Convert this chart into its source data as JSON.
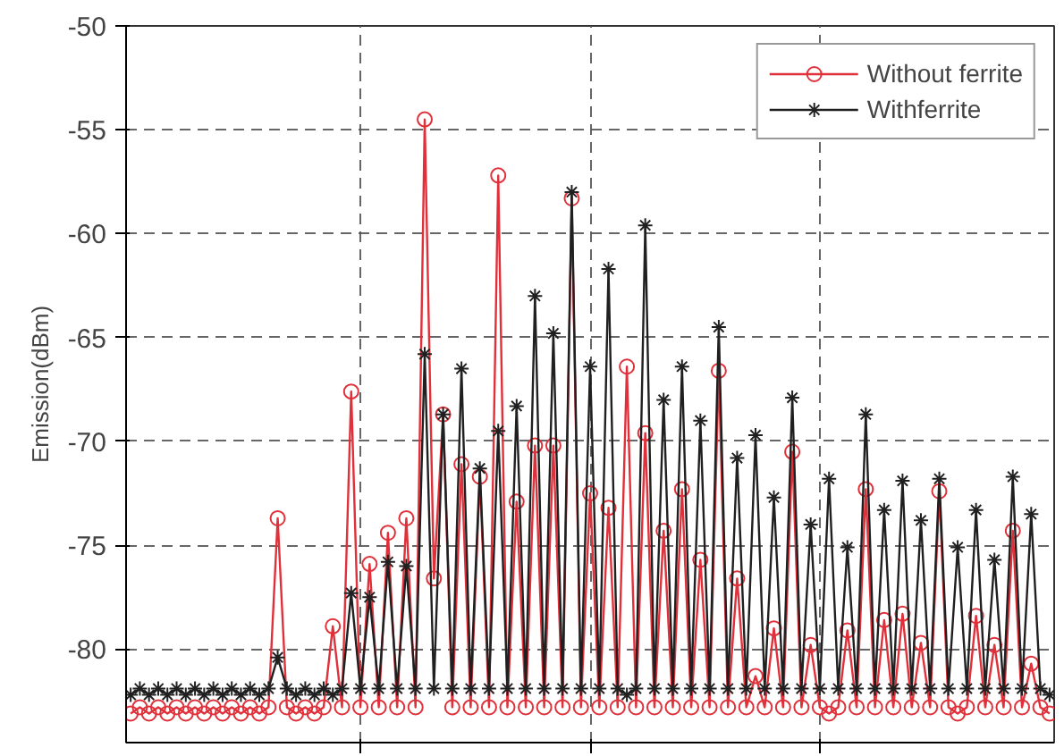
{
  "chart_data": {
    "type": "line",
    "ylabel": "Emission(dBm)",
    "categories": [
      null,
      null,
      null,
      null,
      null,
      null,
      null,
      null,
      null,
      null,
      null,
      null,
      null,
      null,
      null,
      null,
      null,
      null,
      null,
      null,
      null,
      null,
      null,
      null,
      null,
      null,
      null,
      null,
      null,
      null,
      null,
      null,
      null,
      null,
      null,
      null,
      null,
      null,
      null,
      null,
      null,
      null,
      null,
      null,
      null,
      null,
      null,
      null,
      null,
      null,
      null,
      null,
      null,
      null,
      null,
      null,
      null,
      null,
      null,
      null,
      null,
      null,
      null,
      null,
      null,
      null,
      null,
      null,
      null,
      null,
      null,
      null,
      null,
      null,
      null,
      null,
      null,
      null,
      null,
      null,
      null,
      null,
      null,
      null,
      null,
      null,
      null,
      null,
      null,
      null,
      null,
      null,
      null,
      null,
      null,
      null,
      null,
      null,
      null,
      null,
      null
    ],
    "ylim": [
      -84.5,
      -50
    ],
    "yticks": [
      -80,
      -75,
      -70,
      -65,
      -60,
      -55,
      -50
    ],
    "grid": true,
    "legend": "top right",
    "series": [
      {
        "name": "Without ferrite",
        "color": "#e0303a",
        "marker": "circle",
        "values": [
          -83.1,
          -82.8,
          -83.1,
          -82.8,
          -83.1,
          -82.8,
          -83.1,
          -82.8,
          -83.1,
          -82.8,
          -83.1,
          -82.8,
          -83.1,
          -82.8,
          -83.1,
          -82.8,
          -73.7,
          -82.8,
          -83.1,
          -82.8,
          -83.1,
          -82.8,
          -78.9,
          -82.8,
          -67.6,
          -82.8,
          -75.9,
          -82.8,
          -74.4,
          -82.8,
          -73.7,
          -82.8,
          -54.5,
          -76.6,
          -68.7,
          -82.8,
          -71.1,
          -82.8,
          -71.7,
          -82.8,
          -57.2,
          -82.8,
          -72.9,
          -82.8,
          -70.2,
          -82.8,
          -70.2,
          -82.8,
          -58.3,
          -82.8,
          -72.5,
          -82.8,
          -73.2,
          -82.8,
          -66.4,
          -82.8,
          -69.6,
          -82.8,
          -74.3,
          -82.8,
          -72.3,
          -82.8,
          -75.7,
          -82.8,
          -66.6,
          -82.8,
          -76.6,
          -82.8,
          -81.3,
          -82.8,
          -79.0,
          -82.8,
          -70.5,
          -82.8,
          -79.8,
          -82.8,
          -83.1,
          -82.8,
          -79.1,
          -82.8,
          -72.3,
          -82.8,
          -78.6,
          -82.8,
          -78.3,
          -82.8,
          -79.7,
          -82.8,
          -72.4,
          -82.8,
          -83.1,
          -82.8,
          -78.4,
          -82.8,
          -79.8,
          -82.8,
          -74.3,
          -82.8,
          -80.7,
          -82.8,
          -83.1
        ]
      },
      {
        "name": "Withferrite",
        "color": "#202020",
        "marker": "cross",
        "values": [
          -82.2,
          -81.9,
          -82.2,
          -81.9,
          -82.2,
          -81.9,
          -82.2,
          -81.9,
          -82.2,
          -81.9,
          -82.2,
          -81.9,
          -82.2,
          -81.9,
          -82.2,
          -81.9,
          -80.4,
          -81.9,
          -82.2,
          -81.9,
          -82.2,
          -81.9,
          -82.2,
          -81.9,
          -77.3,
          -81.9,
          -77.5,
          -81.9,
          -75.8,
          -81.9,
          -76.0,
          -81.9,
          -65.8,
          -81.9,
          -68.7,
          -81.9,
          -66.5,
          -81.9,
          -71.3,
          -81.9,
          -69.5,
          -81.9,
          -68.3,
          -81.9,
          -63.0,
          -81.9,
          -64.8,
          -81.9,
          -58.0,
          -81.9,
          -66.4,
          -81.9,
          -61.7,
          -81.9,
          -82.2,
          -81.9,
          -59.6,
          -81.9,
          -68.0,
          -81.9,
          -66.4,
          -81.9,
          -69.0,
          -81.9,
          -64.5,
          -81.9,
          -70.8,
          -81.9,
          -69.7,
          -81.9,
          -72.7,
          -81.9,
          -67.9,
          -81.9,
          -74.0,
          -81.9,
          -71.8,
          -81.9,
          -75.1,
          -81.9,
          -68.7,
          -81.9,
          -73.3,
          -81.9,
          -71.9,
          -81.9,
          -73.8,
          -81.9,
          -71.8,
          -81.9,
          -75.1,
          -81.9,
          -73.3,
          -81.9,
          -75.7,
          -81.9,
          -71.7,
          -81.9,
          -73.5,
          -81.9,
          -82.2
        ]
      }
    ]
  }
}
